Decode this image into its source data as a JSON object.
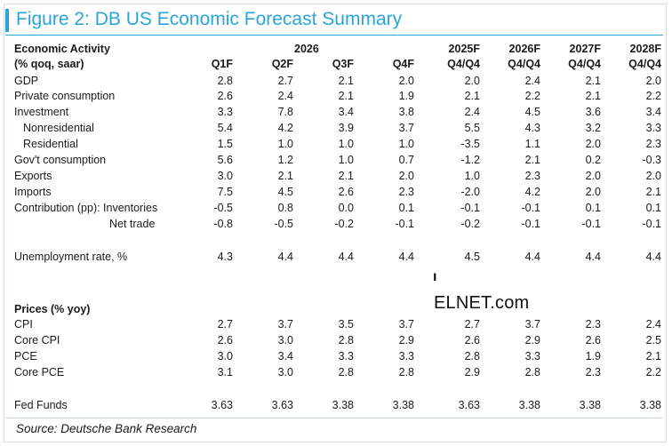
{
  "title": "Figure 2: DB US Economic Forecast Summary",
  "header": {
    "section_label": "Economic Activity",
    "section_sub": "(% qoq, saar)",
    "year_group": "2026",
    "quarters": [
      "Q1F",
      "Q2F",
      "Q3F",
      "Q4F"
    ],
    "annual_top": [
      "2025F",
      "2026F",
      "2027F",
      "2028F"
    ],
    "annual_bottom": [
      "Q4/Q4",
      "Q4/Q4",
      "Q4/Q4",
      "Q4/Q4"
    ]
  },
  "activity_rows": [
    {
      "label": "GDP",
      "values": [
        "2.8",
        "2.7",
        "2.1",
        "2.0",
        "2.0",
        "2.4",
        "2.1",
        "2.0"
      ]
    },
    {
      "label": "Private consumption",
      "values": [
        "2.6",
        "2.4",
        "2.1",
        "1.9",
        "2.1",
        "2.2",
        "2.1",
        "2.2"
      ]
    },
    {
      "label": "Investment",
      "values": [
        "3.3",
        "7.8",
        "3.4",
        "3.8",
        "2.4",
        "4.5",
        "3.6",
        "3.4"
      ]
    },
    {
      "label": "Nonresidential",
      "values": [
        "5.4",
        "4.2",
        "3.9",
        "3.7",
        "5.5",
        "4.3",
        "3.2",
        "3.3"
      ]
    },
    {
      "label": "Residential",
      "values": [
        "1.5",
        "1.0",
        "1.0",
        "1.0",
        "-3.5",
        "1.1",
        "2.0",
        "2.3"
      ]
    },
    {
      "label": "Gov't consumption",
      "values": [
        "5.6",
        "1.2",
        "1.0",
        "0.7",
        "-1.2",
        "2.1",
        "0.2",
        "-0.3"
      ]
    },
    {
      "label": "Exports",
      "values": [
        "3.0",
        "2.1",
        "2.1",
        "2.0",
        "1.0",
        "2.3",
        "2.0",
        "2.0"
      ]
    },
    {
      "label": "Imports",
      "values": [
        "7.5",
        "4.5",
        "2.6",
        "2.3",
        "-2.0",
        "4.2",
        "2.0",
        "2.1"
      ]
    },
    {
      "label": "Contribution (pp):  Inventories",
      "values": [
        "-0.5",
        "0.8",
        "0.0",
        "0.1",
        "-0.1",
        "-0.1",
        "0.1",
        "0.1"
      ]
    },
    {
      "label": "Net trade",
      "values": [
        "-0.8",
        "-0.5",
        "-0.2",
        "-0.1",
        "-0.2",
        "-0.1",
        "-0.1",
        "-0.1"
      ]
    }
  ],
  "unemployment": {
    "label": "Unemployment rate, %",
    "values": [
      "4.3",
      "4.4",
      "4.4",
      "4.4",
      "4.5",
      "4.4",
      "4.4",
      "4.4"
    ]
  },
  "prices_header": "Prices (% yoy)",
  "price_rows": [
    {
      "label": "CPI",
      "values": [
        "2.7",
        "3.7",
        "3.5",
        "3.7",
        "2.7",
        "3.7",
        "2.3",
        "2.4"
      ]
    },
    {
      "label": "Core CPI",
      "values": [
        "2.6",
        "3.0",
        "2.8",
        "2.9",
        "2.6",
        "2.9",
        "2.6",
        "2.5"
      ]
    },
    {
      "label": "PCE",
      "values": [
        "3.0",
        "3.4",
        "3.3",
        "3.3",
        "2.8",
        "3.3",
        "1.9",
        "2.1"
      ]
    },
    {
      "label": "Core PCE",
      "values": [
        "3.1",
        "3.0",
        "2.8",
        "2.8",
        "2.9",
        "2.8",
        "2.3",
        "2.2"
      ]
    }
  ],
  "fed_funds": {
    "label": "Fed Funds",
    "values": [
      "3.63",
      "3.63",
      "3.38",
      "3.38",
      "3.63",
      "3.38",
      "3.38",
      "3.38"
    ]
  },
  "source": "Source: Deutsche Bank Research",
  "watermark": "ELNET.com",
  "watermark_mark": "ı",
  "accent_color": "#2aa5dc"
}
